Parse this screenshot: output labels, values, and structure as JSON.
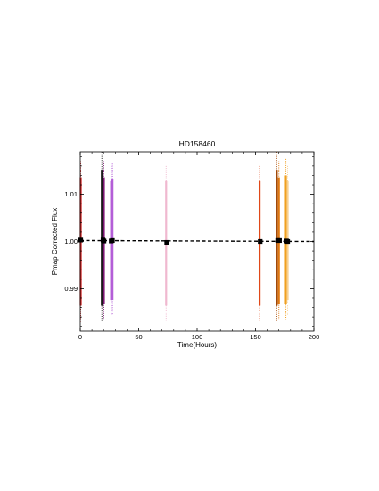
{
  "chart_data": {
    "type": "scatter",
    "title": "HD158460",
    "xlabel": "Time(Hours)",
    "ylabel": "Pmap Corrected Flux",
    "xlim": [
      0,
      200
    ],
    "ylim": [
      0.981,
      1.019
    ],
    "x_ticks": [
      0,
      50,
      100,
      150,
      200
    ],
    "x_tick_labels": [
      "0",
      "50",
      "100",
      "150",
      "200"
    ],
    "y_ticks": [
      0.99,
      1.0,
      1.01
    ],
    "y_tick_labels": [
      "0.99",
      "1.00",
      "1.01"
    ],
    "grid": false,
    "legend": "none",
    "observation_bands": [
      {
        "x": 0.4,
        "y_min": 0.983,
        "y_max": 1.017,
        "color": "#cc2020"
      },
      {
        "x": 18.5,
        "y_min": 0.983,
        "y_max": 1.019,
        "color": "#1a1a1a"
      },
      {
        "x": 20.2,
        "y_min": 0.9835,
        "y_max": 1.017,
        "color": "#7a1470"
      },
      {
        "x": 26.5,
        "y_min": 0.9845,
        "y_max": 1.016,
        "color": "#a040c8"
      },
      {
        "x": 27.6,
        "y_min": 0.9845,
        "y_max": 1.0165,
        "color": "#b45fd8"
      },
      {
        "x": 73.5,
        "y_min": 0.983,
        "y_max": 1.016,
        "color": "#f0b8d0"
      },
      {
        "x": 153.5,
        "y_min": 0.983,
        "y_max": 1.016,
        "color": "#e04818"
      },
      {
        "x": 168.2,
        "y_min": 0.983,
        "y_max": 1.019,
        "color": "#a04808"
      },
      {
        "x": 170.0,
        "y_min": 0.9835,
        "y_max": 1.017,
        "color": "#e07810"
      },
      {
        "x": 176.0,
        "y_min": 0.9835,
        "y_max": 1.0175,
        "color": "#f0a020"
      },
      {
        "x": 177.5,
        "y_min": 0.9845,
        "y_max": 1.016,
        "color": "#f8d090"
      }
    ],
    "binned_points": [
      {
        "x": 0.4,
        "y": 1.0003
      },
      {
        "x": 19.5,
        "y": 1.0003
      },
      {
        "x": 20.3,
        "y": 1.0001
      },
      {
        "x": 26.5,
        "y": 1.0001
      },
      {
        "x": 27.5,
        "y": 1.0002
      },
      {
        "x": 74.0,
        "y": 0.9998
      },
      {
        "x": 154.0,
        "y": 1.0
      },
      {
        "x": 169.0,
        "y": 1.0002
      },
      {
        "x": 170.5,
        "y": 1.0002
      },
      {
        "x": 176.5,
        "y": 1.0001
      },
      {
        "x": 177.5,
        "y": 1.0
      }
    ],
    "trend_line": {
      "x": [
        0,
        200
      ],
      "y": [
        1.0002,
        1.0
      ],
      "style": "dashed",
      "color": "#000000"
    }
  }
}
